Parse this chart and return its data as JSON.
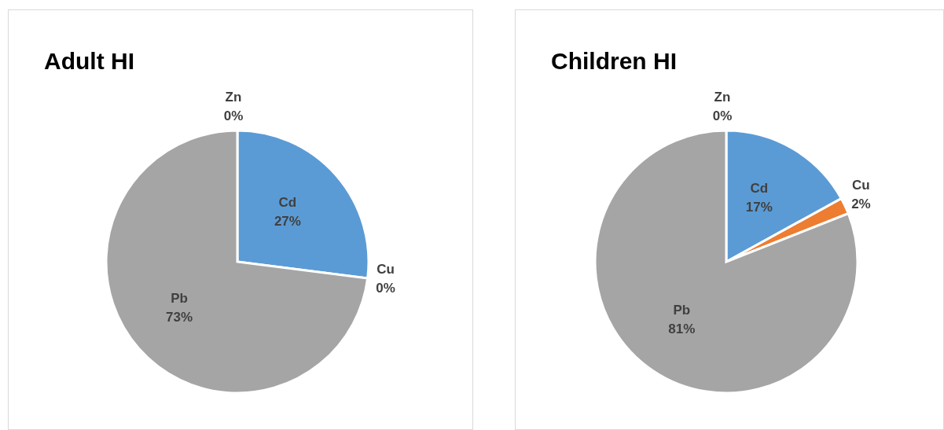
{
  "chart_data": [
    {
      "type": "pie",
      "title": "Adult HI",
      "categories": [
        "Cd",
        "Cu",
        "Pb",
        "Zn"
      ],
      "values": [
        27,
        0,
        73,
        0
      ],
      "colors": [
        "#5b9bd5",
        "#ed7d31",
        "#a5a5a5",
        "#ffc000"
      ],
      "value_labels": [
        "27%",
        "0%",
        "73%",
        "0%"
      ]
    },
    {
      "type": "pie",
      "title": "Children HI",
      "categories": [
        "Cd",
        "Cu",
        "Pb",
        "Zn"
      ],
      "values": [
        17,
        2,
        81,
        0
      ],
      "colors": [
        "#5b9bd5",
        "#ed7d31",
        "#a5a5a5",
        "#ffc000"
      ],
      "value_labels": [
        "17%",
        "2%",
        "81%",
        "0%"
      ]
    }
  ]
}
